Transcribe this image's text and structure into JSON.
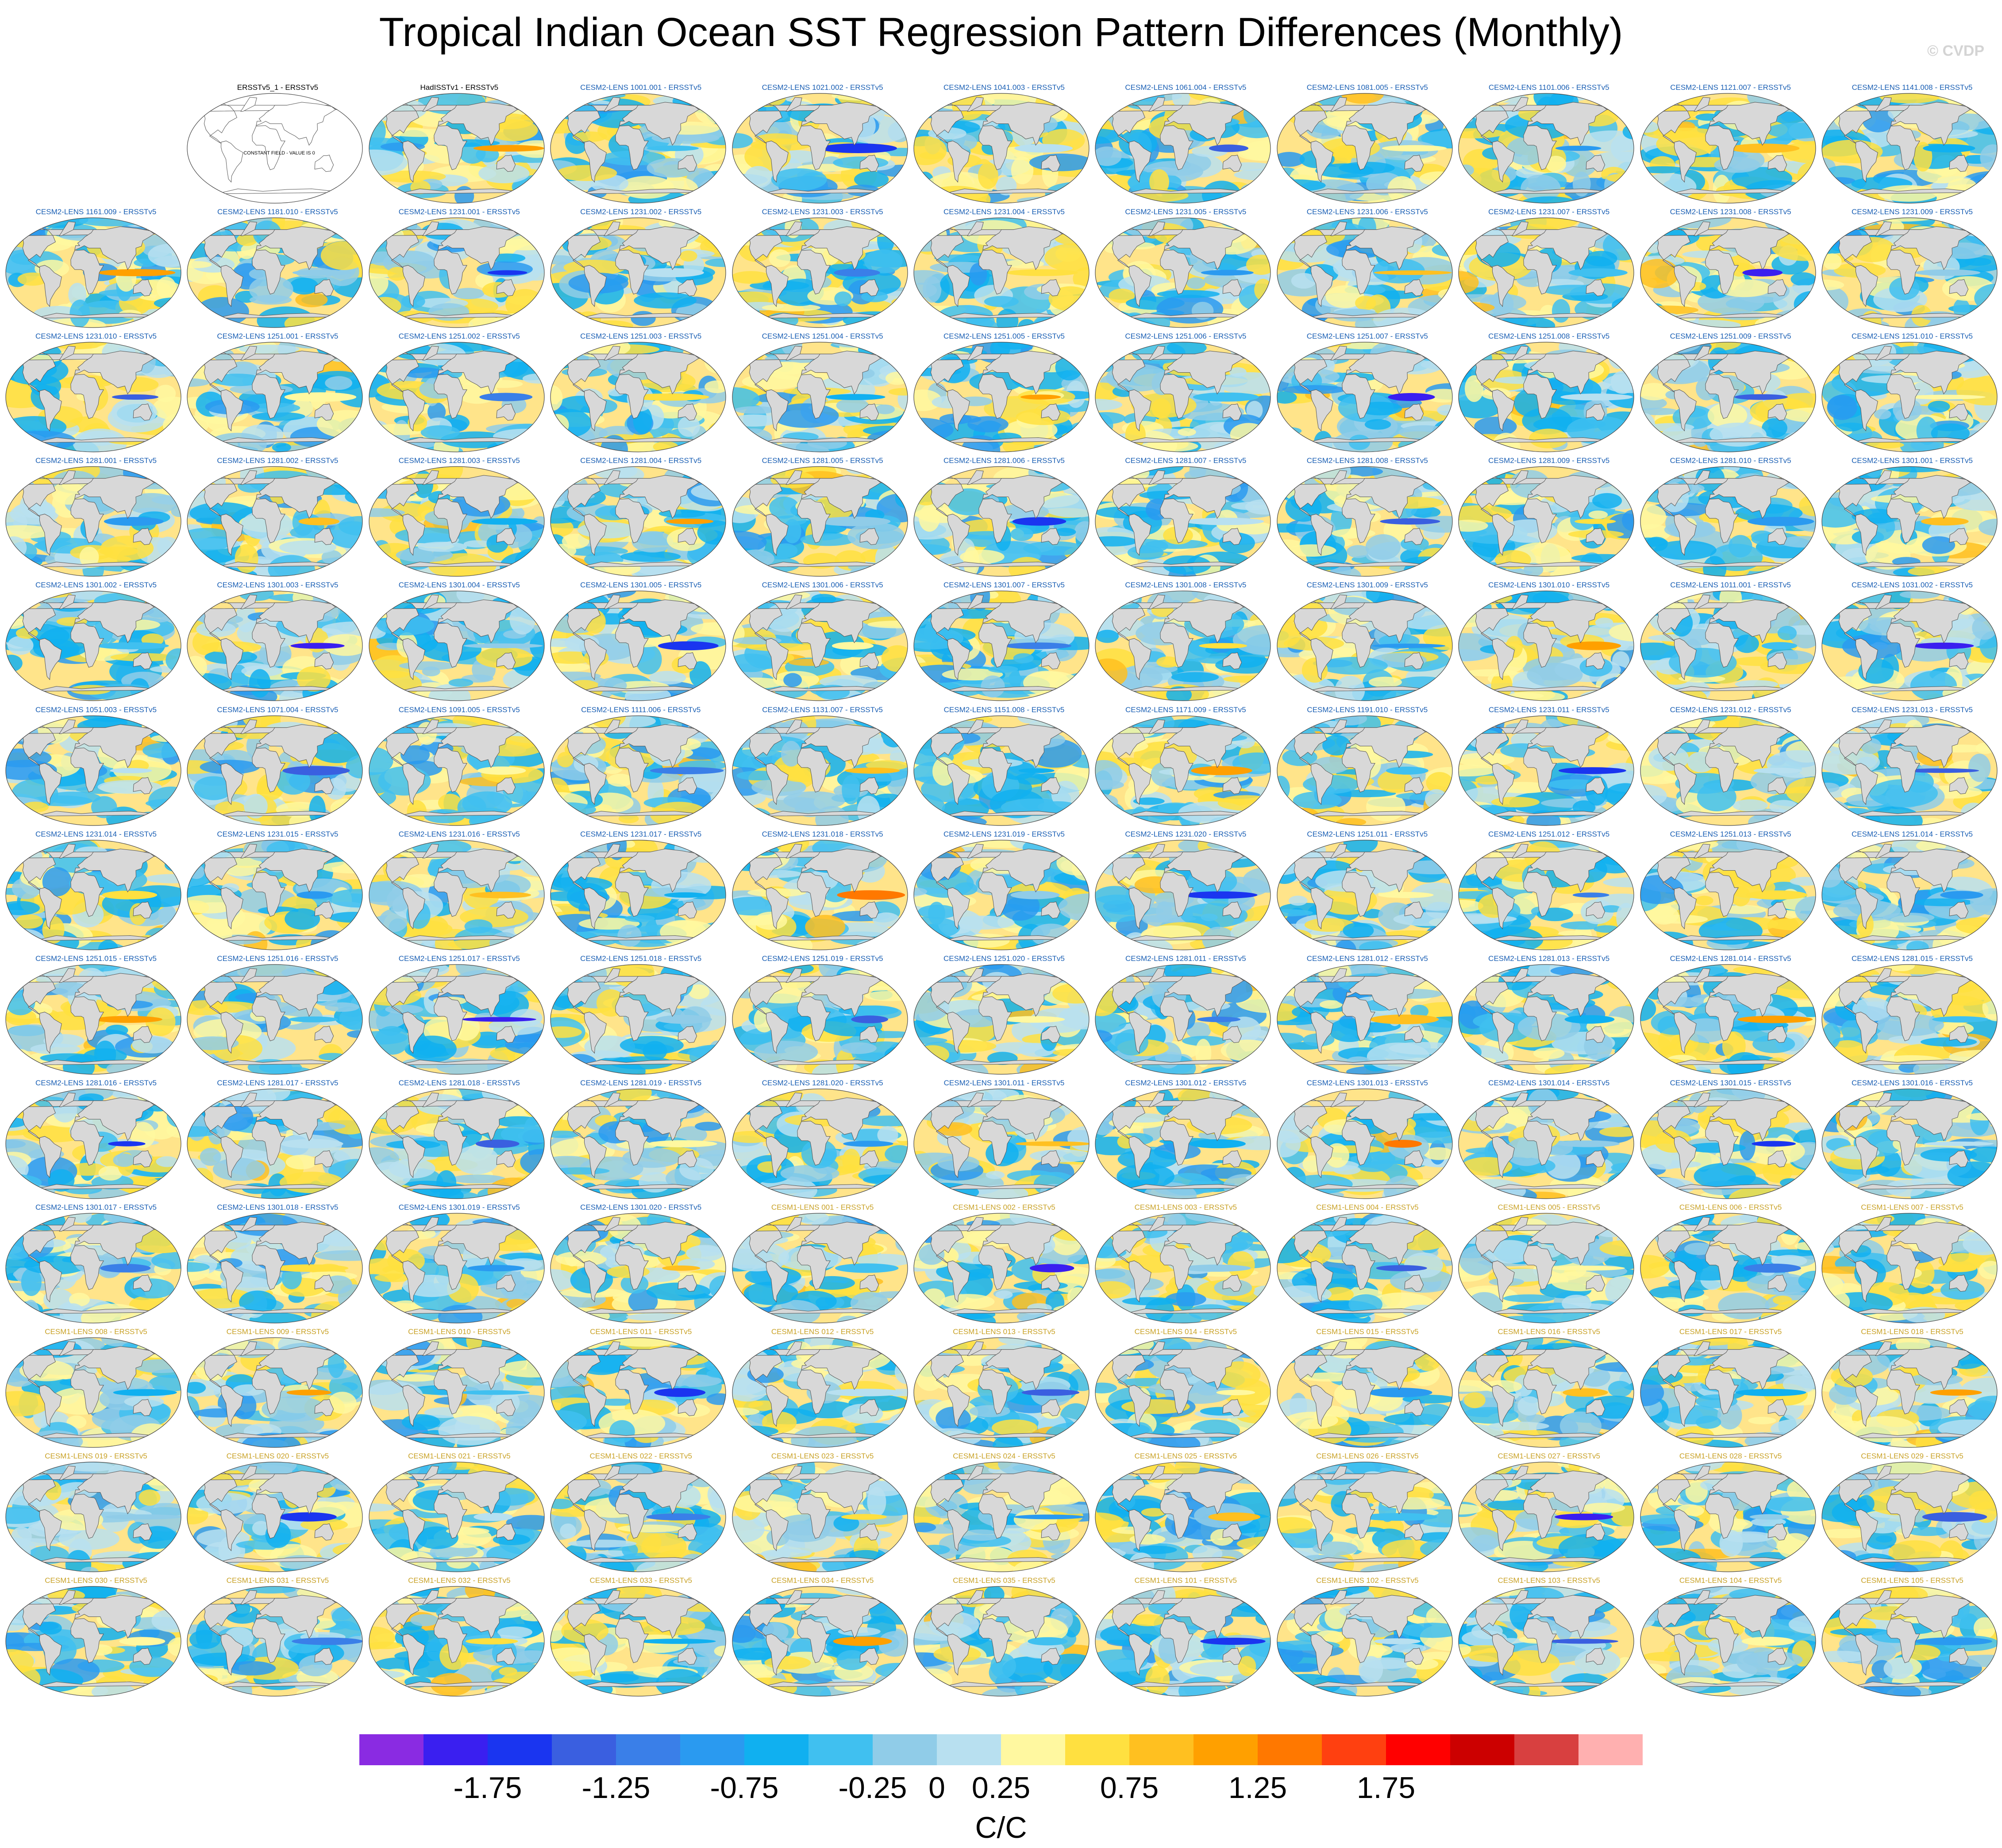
{
  "title": "Tropical Indian Ocean SST Regression Pattern Differences (Monthly)",
  "copyright": "© CVDP",
  "colors": {
    "obs_label": "#000000",
    "cesm2_label": "#1a5fb4",
    "cesm1_label": "#c9a227",
    "land": "#d8d8d8"
  },
  "chart_data": {
    "type": "heatmap",
    "projection": "global map (Robinson-like)",
    "grid": "13 rows x 11 columns of map panels",
    "units": "C/C",
    "colorbar": {
      "levels": [
        -2.0,
        -1.75,
        -1.5,
        -1.25,
        -1.0,
        -0.75,
        -0.5,
        -0.25,
        0,
        0.25,
        0.5,
        0.75,
        1.0,
        1.25,
        1.5,
        1.75,
        2.0
      ],
      "tick_labels": [
        "-1.75",
        "-1.25",
        "-0.75",
        "-0.25",
        "0",
        "0.25",
        "0.75",
        "1.25",
        "1.75"
      ],
      "tick_values": [
        -1.75,
        -1.25,
        -0.75,
        -0.25,
        0,
        0.25,
        0.75,
        1.25,
        1.75
      ],
      "colors": [
        "#8a2be2",
        "#3a1ff0",
        "#1a35f0",
        "#3a5fe0",
        "#3a7fe8",
        "#2a9af0",
        "#10b0f0",
        "#40c0f0",
        "#90cce8",
        "#b8e0f0",
        "#fff8a0",
        "#ffe040",
        "#ffc020",
        "#ffa000",
        "#ff7800",
        "#ff4010",
        "#ff0000",
        "#cc0000",
        "#d84040",
        "#ffb0b0"
      ]
    },
    "panels": [
      {
        "label": "",
        "group": "blank"
      },
      {
        "label": "ERSSTv5_1 - ERSSTv5",
        "group": "obs",
        "constant_field": "CONSTANT FIELD - VALUE IS 0"
      },
      {
        "label": "HadISSTv1 - ERSSTv5",
        "group": "obs"
      },
      {
        "label": "CESM2-LENS 1001.001 - ERSSTv5",
        "group": "cesm2"
      },
      {
        "label": "CESM2-LENS 1021.002 - ERSSTv5",
        "group": "cesm2"
      },
      {
        "label": "CESM2-LENS 1041.003 - ERSSTv5",
        "group": "cesm2"
      },
      {
        "label": "CESM2-LENS 1061.004 - ERSSTv5",
        "group": "cesm2"
      },
      {
        "label": "CESM2-LENS 1081.005 - ERSSTv5",
        "group": "cesm2"
      },
      {
        "label": "CESM2-LENS 1101.006 - ERSSTv5",
        "group": "cesm2"
      },
      {
        "label": "CESM2-LENS 1121.007 - ERSSTv5",
        "group": "cesm2"
      },
      {
        "label": "CESM2-LENS 1141.008 - ERSSTv5",
        "group": "cesm2"
      },
      {
        "label": "CESM2-LENS 1161.009 - ERSSTv5",
        "group": "cesm2"
      },
      {
        "label": "CESM2-LENS 1181.010 - ERSSTv5",
        "group": "cesm2"
      },
      {
        "label": "CESM2-LENS 1231.001 - ERSSTv5",
        "group": "cesm2"
      },
      {
        "label": "CESM2-LENS 1231.002 - ERSSTv5",
        "group": "cesm2"
      },
      {
        "label": "CESM2-LENS 1231.003 - ERSSTv5",
        "group": "cesm2"
      },
      {
        "label": "CESM2-LENS 1231.004 - ERSSTv5",
        "group": "cesm2"
      },
      {
        "label": "CESM2-LENS 1231.005 - ERSSTv5",
        "group": "cesm2"
      },
      {
        "label": "CESM2-LENS 1231.006 - ERSSTv5",
        "group": "cesm2"
      },
      {
        "label": "CESM2-LENS 1231.007 - ERSSTv5",
        "group": "cesm2"
      },
      {
        "label": "CESM2-LENS 1231.008 - ERSSTv5",
        "group": "cesm2"
      },
      {
        "label": "CESM2-LENS 1231.009 - ERSSTv5",
        "group": "cesm2"
      },
      {
        "label": "CESM2-LENS 1231.010 - ERSSTv5",
        "group": "cesm2"
      },
      {
        "label": "CESM2-LENS 1251.001 - ERSSTv5",
        "group": "cesm2"
      },
      {
        "label": "CESM2-LENS 1251.002 - ERSSTv5",
        "group": "cesm2"
      },
      {
        "label": "CESM2-LENS 1251.003 - ERSSTv5",
        "group": "cesm2"
      },
      {
        "label": "CESM2-LENS 1251.004 - ERSSTv5",
        "group": "cesm2"
      },
      {
        "label": "CESM2-LENS 1251.005 - ERSSTv5",
        "group": "cesm2"
      },
      {
        "label": "CESM2-LENS 1251.006 - ERSSTv5",
        "group": "cesm2"
      },
      {
        "label": "CESM2-LENS 1251.007 - ERSSTv5",
        "group": "cesm2"
      },
      {
        "label": "CESM2-LENS 1251.008 - ERSSTv5",
        "group": "cesm2"
      },
      {
        "label": "CESM2-LENS 1251.009 - ERSSTv5",
        "group": "cesm2"
      },
      {
        "label": "CESM2-LENS 1251.010 - ERSSTv5",
        "group": "cesm2"
      },
      {
        "label": "CESM2-LENS 1281.001 - ERSSTv5",
        "group": "cesm2"
      },
      {
        "label": "CESM2-LENS 1281.002 - ERSSTv5",
        "group": "cesm2"
      },
      {
        "label": "CESM2-LENS 1281.003 - ERSSTv5",
        "group": "cesm2"
      },
      {
        "label": "CESM2-LENS 1281.004 - ERSSTv5",
        "group": "cesm2"
      },
      {
        "label": "CESM2-LENS 1281.005 - ERSSTv5",
        "group": "cesm2"
      },
      {
        "label": "CESM2-LENS 1281.006 - ERSSTv5",
        "group": "cesm2"
      },
      {
        "label": "CESM2-LENS 1281.007 - ERSSTv5",
        "group": "cesm2"
      },
      {
        "label": "CESM2-LENS 1281.008 - ERSSTv5",
        "group": "cesm2"
      },
      {
        "label": "CESM2-LENS 1281.009 - ERSSTv5",
        "group": "cesm2"
      },
      {
        "label": "CESM2-LENS 1281.010 - ERSSTv5",
        "group": "cesm2"
      },
      {
        "label": "CESM2-LENS 1301.001 - ERSSTv5",
        "group": "cesm2"
      },
      {
        "label": "CESM2-LENS 1301.002 - ERSSTv5",
        "group": "cesm2"
      },
      {
        "label": "CESM2-LENS 1301.003 - ERSSTv5",
        "group": "cesm2"
      },
      {
        "label": "CESM2-LENS 1301.004 - ERSSTv5",
        "group": "cesm2"
      },
      {
        "label": "CESM2-LENS 1301.005 - ERSSTv5",
        "group": "cesm2"
      },
      {
        "label": "CESM2-LENS 1301.006 - ERSSTv5",
        "group": "cesm2"
      },
      {
        "label": "CESM2-LENS 1301.007 - ERSSTv5",
        "group": "cesm2"
      },
      {
        "label": "CESM2-LENS 1301.008 - ERSSTv5",
        "group": "cesm2"
      },
      {
        "label": "CESM2-LENS 1301.009 - ERSSTv5",
        "group": "cesm2"
      },
      {
        "label": "CESM2-LENS 1301.010 - ERSSTv5",
        "group": "cesm2"
      },
      {
        "label": "CESM2-LENS 1011.001 - ERSSTv5",
        "group": "cesm2"
      },
      {
        "label": "CESM2-LENS 1031.002 - ERSSTv5",
        "group": "cesm2"
      },
      {
        "label": "CESM2-LENS 1051.003 - ERSSTv5",
        "group": "cesm2"
      },
      {
        "label": "CESM2-LENS 1071.004 - ERSSTv5",
        "group": "cesm2"
      },
      {
        "label": "CESM2-LENS 1091.005 - ERSSTv5",
        "group": "cesm2"
      },
      {
        "label": "CESM2-LENS 1111.006 - ERSSTv5",
        "group": "cesm2"
      },
      {
        "label": "CESM2-LENS 1131.007 - ERSSTv5",
        "group": "cesm2"
      },
      {
        "label": "CESM2-LENS 1151.008 - ERSSTv5",
        "group": "cesm2"
      },
      {
        "label": "CESM2-LENS 1171.009 - ERSSTv5",
        "group": "cesm2"
      },
      {
        "label": "CESM2-LENS 1191.010 - ERSSTv5",
        "group": "cesm2"
      },
      {
        "label": "CESM2-LENS 1231.011 - ERSSTv5",
        "group": "cesm2"
      },
      {
        "label": "CESM2-LENS 1231.012 - ERSSTv5",
        "group": "cesm2"
      },
      {
        "label": "CESM2-LENS 1231.013 - ERSSTv5",
        "group": "cesm2"
      },
      {
        "label": "CESM2-LENS 1231.014 - ERSSTv5",
        "group": "cesm2"
      },
      {
        "label": "CESM2-LENS 1231.015 - ERSSTv5",
        "group": "cesm2"
      },
      {
        "label": "CESM2-LENS 1231.016 - ERSSTv5",
        "group": "cesm2"
      },
      {
        "label": "CESM2-LENS 1231.017 - ERSSTv5",
        "group": "cesm2"
      },
      {
        "label": "CESM2-LENS 1231.018 - ERSSTv5",
        "group": "cesm2"
      },
      {
        "label": "CESM2-LENS 1231.019 - ERSSTv5",
        "group": "cesm2"
      },
      {
        "label": "CESM2-LENS 1231.020 - ERSSTv5",
        "group": "cesm2"
      },
      {
        "label": "CESM2-LENS 1251.011 - ERSSTv5",
        "group": "cesm2"
      },
      {
        "label": "CESM2-LENS 1251.012 - ERSSTv5",
        "group": "cesm2"
      },
      {
        "label": "CESM2-LENS 1251.013 - ERSSTv5",
        "group": "cesm2"
      },
      {
        "label": "CESM2-LENS 1251.014 - ERSSTv5",
        "group": "cesm2"
      },
      {
        "label": "CESM2-LENS 1251.015 - ERSSTv5",
        "group": "cesm2"
      },
      {
        "label": "CESM2-LENS 1251.016 - ERSSTv5",
        "group": "cesm2"
      },
      {
        "label": "CESM2-LENS 1251.017 - ERSSTv5",
        "group": "cesm2"
      },
      {
        "label": "CESM2-LENS 1251.018 - ERSSTv5",
        "group": "cesm2"
      },
      {
        "label": "CESM2-LENS 1251.019 - ERSSTv5",
        "group": "cesm2"
      },
      {
        "label": "CESM2-LENS 1251.020 - ERSSTv5",
        "group": "cesm2"
      },
      {
        "label": "CESM2-LENS 1281.011 - ERSSTv5",
        "group": "cesm2"
      },
      {
        "label": "CESM2-LENS 1281.012 - ERSSTv5",
        "group": "cesm2"
      },
      {
        "label": "CESM2-LENS 1281.013 - ERSSTv5",
        "group": "cesm2"
      },
      {
        "label": "CESM2-LENS 1281.014 - ERSSTv5",
        "group": "cesm2"
      },
      {
        "label": "CESM2-LENS 1281.015 - ERSSTv5",
        "group": "cesm2"
      },
      {
        "label": "CESM2-LENS 1281.016 - ERSSTv5",
        "group": "cesm2"
      },
      {
        "label": "CESM2-LENS 1281.017 - ERSSTv5",
        "group": "cesm2"
      },
      {
        "label": "CESM2-LENS 1281.018 - ERSSTv5",
        "group": "cesm2"
      },
      {
        "label": "CESM2-LENS 1281.019 - ERSSTv5",
        "group": "cesm2"
      },
      {
        "label": "CESM2-LENS 1281.020 - ERSSTv5",
        "group": "cesm2"
      },
      {
        "label": "CESM2-LENS 1301.011 - ERSSTv5",
        "group": "cesm2"
      },
      {
        "label": "CESM2-LENS 1301.012 - ERSSTv5",
        "group": "cesm2"
      },
      {
        "label": "CESM2-LENS 1301.013 - ERSSTv5",
        "group": "cesm2"
      },
      {
        "label": "CESM2-LENS 1301.014 - ERSSTv5",
        "group": "cesm2"
      },
      {
        "label": "CESM2-LENS 1301.015 - ERSSTv5",
        "group": "cesm2"
      },
      {
        "label": "CESM2-LENS 1301.016 - ERSSTv5",
        "group": "cesm2"
      },
      {
        "label": "CESM2-LENS 1301.017 - ERSSTv5",
        "group": "cesm2"
      },
      {
        "label": "CESM2-LENS 1301.018 - ERSSTv5",
        "group": "cesm2"
      },
      {
        "label": "CESM2-LENS 1301.019 - ERSSTv5",
        "group": "cesm2"
      },
      {
        "label": "CESM2-LENS 1301.020 - ERSSTv5",
        "group": "cesm2"
      },
      {
        "label": "CESM1-LENS 001 - ERSSTv5",
        "group": "cesm1"
      },
      {
        "label": "CESM1-LENS 002 - ERSSTv5",
        "group": "cesm1"
      },
      {
        "label": "CESM1-LENS 003 - ERSSTv5",
        "group": "cesm1"
      },
      {
        "label": "CESM1-LENS 004 - ERSSTv5",
        "group": "cesm1"
      },
      {
        "label": "CESM1-LENS 005 - ERSSTv5",
        "group": "cesm1"
      },
      {
        "label": "CESM1-LENS 006 - ERSSTv5",
        "group": "cesm1"
      },
      {
        "label": "CESM1-LENS 007 - ERSSTv5",
        "group": "cesm1"
      },
      {
        "label": "CESM1-LENS 008 - ERSSTv5",
        "group": "cesm1"
      },
      {
        "label": "CESM1-LENS 009 - ERSSTv5",
        "group": "cesm1"
      },
      {
        "label": "CESM1-LENS 010 - ERSSTv5",
        "group": "cesm1"
      },
      {
        "label": "CESM1-LENS 011 - ERSSTv5",
        "group": "cesm1"
      },
      {
        "label": "CESM1-LENS 012 - ERSSTv5",
        "group": "cesm1"
      },
      {
        "label": "CESM1-LENS 013 - ERSSTv5",
        "group": "cesm1"
      },
      {
        "label": "CESM1-LENS 014 - ERSSTv5",
        "group": "cesm1"
      },
      {
        "label": "CESM1-LENS 015 - ERSSTv5",
        "group": "cesm1"
      },
      {
        "label": "CESM1-LENS 016 - ERSSTv5",
        "group": "cesm1"
      },
      {
        "label": "CESM1-LENS 017 - ERSSTv5",
        "group": "cesm1"
      },
      {
        "label": "CESM1-LENS 018 - ERSSTv5",
        "group": "cesm1"
      },
      {
        "label": "CESM1-LENS 019 - ERSSTv5",
        "group": "cesm1"
      },
      {
        "label": "CESM1-LENS 020 - ERSSTv5",
        "group": "cesm1"
      },
      {
        "label": "CESM1-LENS 021 - ERSSTv5",
        "group": "cesm1"
      },
      {
        "label": "CESM1-LENS 022 - ERSSTv5",
        "group": "cesm1"
      },
      {
        "label": "CESM1-LENS 023 - ERSSTv5",
        "group": "cesm1"
      },
      {
        "label": "CESM1-LENS 024 - ERSSTv5",
        "group": "cesm1"
      },
      {
        "label": "CESM1-LENS 025 - ERSSTv5",
        "group": "cesm1"
      },
      {
        "label": "CESM1-LENS 026 - ERSSTv5",
        "group": "cesm1"
      },
      {
        "label": "CESM1-LENS 027 - ERSSTv5",
        "group": "cesm1"
      },
      {
        "label": "CESM1-LENS 028 - ERSSTv5",
        "group": "cesm1"
      },
      {
        "label": "CESM1-LENS 029 - ERSSTv5",
        "group": "cesm1"
      },
      {
        "label": "CESM1-LENS 030 - ERSSTv5",
        "group": "cesm1"
      },
      {
        "label": "CESM1-LENS 031 - ERSSTv5",
        "group": "cesm1"
      },
      {
        "label": "CESM1-LENS 032 - ERSSTv5",
        "group": "cesm1"
      },
      {
        "label": "CESM1-LENS 033 - ERSSTv5",
        "group": "cesm1"
      },
      {
        "label": "CESM1-LENS 034 - ERSSTv5",
        "group": "cesm1"
      },
      {
        "label": "CESM1-LENS 035 - ERSSTv5",
        "group": "cesm1"
      },
      {
        "label": "CESM1-LENS 101 - ERSSTv5",
        "group": "cesm1"
      },
      {
        "label": "CESM1-LENS 102 - ERSSTv5",
        "group": "cesm1"
      },
      {
        "label": "CESM1-LENS 103 - ERSSTv5",
        "group": "cesm1"
      },
      {
        "label": "CESM1-LENS 104 - ERSSTv5",
        "group": "cesm1"
      },
      {
        "label": "CESM1-LENS 105 - ERSSTv5",
        "group": "cesm1"
      }
    ]
  }
}
